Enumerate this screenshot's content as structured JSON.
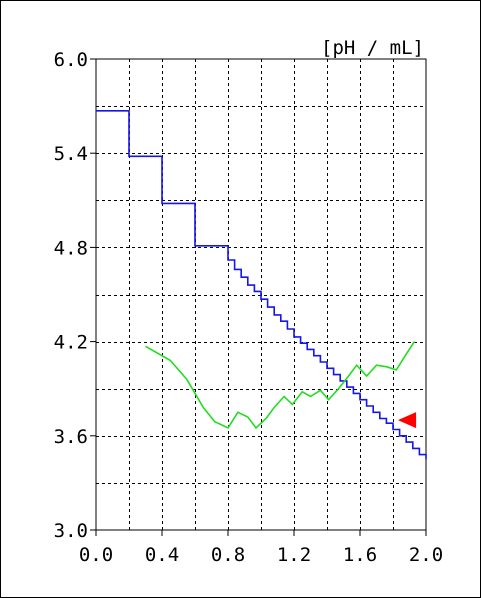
{
  "chart_data": {
    "type": "line",
    "unit_label": "[pH / mL]",
    "title": "",
    "xlabel": "",
    "ylabel": "",
    "xlim": [
      0.0,
      2.0
    ],
    "ylim": [
      3.0,
      6.0
    ],
    "x_ticks": [
      "0.0",
      "0.4",
      "0.8",
      "1.2",
      "1.6",
      "2.0"
    ],
    "y_ticks": [
      "3.0",
      "3.6",
      "4.2",
      "4.8",
      "5.4",
      "6.0"
    ],
    "x_grid_step": 0.2,
    "y_grid_step": 0.3,
    "grid": true,
    "grid_style": "dashed",
    "colors": {
      "ph": "#1515ee",
      "derivative": "#22dd22",
      "marker": "#ff0000"
    },
    "series": [
      {
        "style": "step",
        "color": "#1515ee",
        "x": [
          0.0,
          0.2,
          0.4,
          0.6,
          0.8,
          0.84,
          0.88,
          0.92,
          0.96,
          1.0,
          1.04,
          1.08,
          1.12,
          1.16,
          1.2,
          1.24,
          1.28,
          1.32,
          1.36,
          1.4,
          1.44,
          1.48,
          1.52,
          1.56,
          1.6,
          1.64,
          1.68,
          1.72,
          1.76,
          1.8,
          1.84,
          1.88,
          1.92,
          1.96,
          2.0
        ],
        "y": [
          5.67,
          5.38,
          5.08,
          4.81,
          4.72,
          4.66,
          4.61,
          4.56,
          4.52,
          4.47,
          4.42,
          4.37,
          4.33,
          4.28,
          4.23,
          4.19,
          4.15,
          4.11,
          4.07,
          4.03,
          3.99,
          3.95,
          3.91,
          3.87,
          3.83,
          3.79,
          3.75,
          3.71,
          3.68,
          3.64,
          3.6,
          3.56,
          3.52,
          3.48,
          3.45
        ]
      },
      {
        "style": "line",
        "color": "#22dd22",
        "x": [
          0.3,
          0.45,
          0.55,
          0.65,
          0.72,
          0.8,
          0.86,
          0.92,
          0.97,
          1.03,
          1.08,
          1.14,
          1.19,
          1.25,
          1.3,
          1.36,
          1.41,
          1.47,
          1.53,
          1.58,
          1.64,
          1.7,
          1.76,
          1.82,
          1.88,
          1.93
        ],
        "y": [
          4.17,
          4.08,
          3.96,
          3.78,
          3.69,
          3.65,
          3.75,
          3.72,
          3.65,
          3.71,
          3.78,
          3.85,
          3.8,
          3.88,
          3.85,
          3.89,
          3.83,
          3.9,
          3.98,
          4.05,
          3.98,
          4.05,
          4.04,
          4.02,
          4.12,
          4.2
        ]
      }
    ],
    "marker": {
      "shape": "triangle-left",
      "x": [
        1.83,
        1.94
      ],
      "y": 3.7
    }
  }
}
